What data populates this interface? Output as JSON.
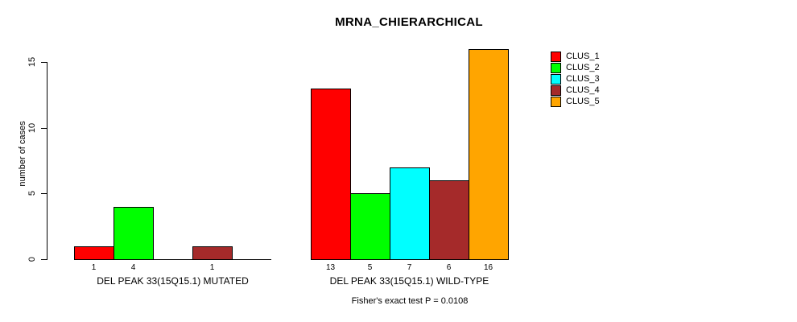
{
  "chart_data": {
    "type": "bar",
    "title": "MRNA_CHIERARCHICAL",
    "ylabel": "number of cases",
    "annotation": "Fisher's exact test P = 0.0108",
    "y_axis": {
      "range": [
        0,
        16
      ],
      "ticks": [
        {
          "value": 0,
          "label": "0"
        },
        {
          "value": 5,
          "label": "5"
        },
        {
          "value": 10,
          "label": "10"
        },
        {
          "value": 15,
          "label": "15"
        }
      ]
    },
    "grid": false,
    "legend_position": "right",
    "series": [
      {
        "label": "CLUS_1",
        "color": "#FF0000"
      },
      {
        "label": "CLUS_2",
        "color": "#00FF00"
      },
      {
        "label": "CLUS_3",
        "color": "#00FFFF"
      },
      {
        "label": "CLUS_4",
        "color": "#A52A2A"
      },
      {
        "label": "CLUS_5",
        "color": "#FFA500"
      }
    ],
    "groups": [
      {
        "label": "DEL PEAK 33(15Q15.1) MUTATED",
        "values": [
          1,
          4,
          0,
          1,
          0
        ],
        "bar_labels": [
          "1",
          "4",
          "",
          "1",
          ""
        ]
      },
      {
        "label": "DEL PEAK 33(15Q15.1) WILD-TYPE",
        "values": [
          13,
          5,
          7,
          6,
          16
        ],
        "bar_labels": [
          "13",
          "5",
          "7",
          "6",
          "16"
        ]
      }
    ]
  }
}
